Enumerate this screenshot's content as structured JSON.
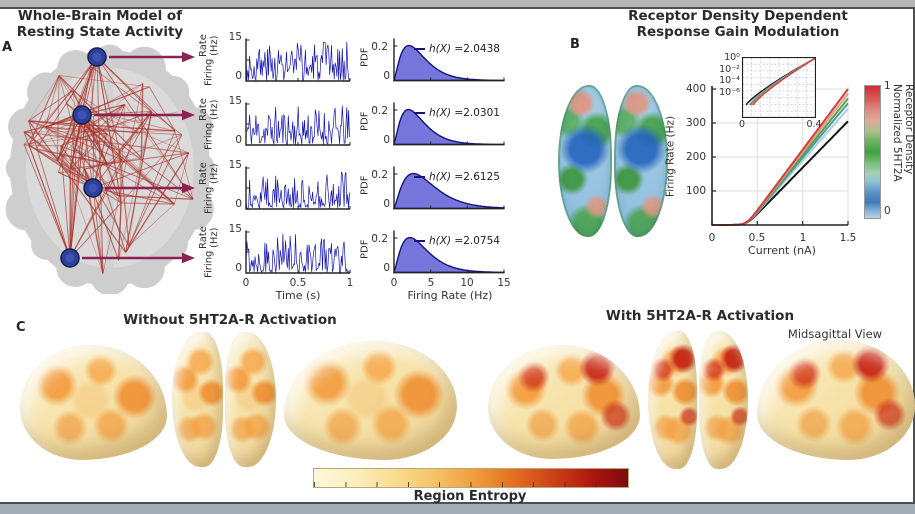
{
  "panelA": {
    "label": "A",
    "title_line1": "Whole-Brain Model of",
    "title_line2": "Resting State Activity",
    "ts_ylabel_line1": "Firing",
    "ts_ylabel_line2": "Rate (Hz)",
    "ts_ymax": "15",
    "ts_ymin": "0",
    "pdf_ylabel": "PDF",
    "pdf_ymax": "0.2",
    "pdf_ymin": "0",
    "h_prefix": "h(X) = ",
    "h_values": [
      "2.0438",
      "2.0301",
      "2.6125",
      "2.0754"
    ],
    "time_ticks": [
      "0",
      "0.5",
      "1"
    ],
    "time_label": "Time (s)",
    "rate_ticks": [
      "0",
      "5",
      "10",
      "15"
    ],
    "rate_label": "Firing Rate (Hz)"
  },
  "panelB": {
    "label": "B",
    "title_line1": "Receptor Density Dependent",
    "title_line2": "Response Gain Modulation",
    "ylabel": "Firing Rate (Hz)",
    "yticks": [
      "400",
      "300",
      "200",
      "100"
    ],
    "xticks": [
      "0",
      "0.5",
      "1",
      "1.5"
    ],
    "xlabel": "Current (nA)",
    "inset_yticks": [
      "10⁰",
      "10⁻²",
      "10⁻⁴",
      "10⁻⁶"
    ],
    "inset_xticks": [
      "0",
      "0.4"
    ],
    "cbar_max": "1",
    "cbar_min": "0",
    "cbar_label_line1": "Normalized 5HT2A",
    "cbar_label_line2": "Receptor Density"
  },
  "panelC": {
    "label": "C",
    "title_without": "Without 5HT2A-R Activation",
    "title_with": "With 5HT2A-R Activation",
    "view_label": "Midsagittal View",
    "cbar_label": "Region Entropy"
  },
  "render": {
    "ts": {
      "color": "#1414b4",
      "seeds": [
        3,
        11,
        27,
        55
      ]
    },
    "pdf": {
      "fill": "#7676dc",
      "stroke": "#13137c",
      "thetas": [
        1.5,
        1.45,
        1.95,
        1.6
      ]
    },
    "net": {
      "seed": 9,
      "edges": 120,
      "edge_color": "#a8322a",
      "node_color": "#2e4098",
      "arrow_color": "#8d2150",
      "hubs": [
        [
          97,
          15
        ],
        [
          82,
          73
        ],
        [
          93,
          146
        ],
        [
          70,
          216
        ]
      ]
    },
    "fi": {
      "threshold": 0.38,
      "series": [
        {
          "color": "#151515",
          "end": 305,
          "ishift": 0.0
        },
        {
          "color": "#a9cfe5",
          "end": 342,
          "ishift": 0.016
        },
        {
          "color": "#4f9b9b",
          "end": 358,
          "ishift": 0.021
        },
        {
          "color": "#49a649",
          "end": 372,
          "ishift": 0.026
        },
        {
          "color": "#e79a86",
          "end": 386,
          "ishift": 0.032
        },
        {
          "color": "#d43d3d",
          "end": 400,
          "ishift": 0.038
        }
      ]
    }
  },
  "chart_data": [
    {
      "id": "A_time_series",
      "type": "line",
      "xlabel": "Time (s)",
      "ylabel": "Firing Rate (Hz)",
      "xlim": [
        0,
        1
      ],
      "ylim": [
        0,
        15
      ],
      "xticks": [
        0,
        0.5,
        1
      ],
      "yticks": [
        0,
        15
      ],
      "n_series": 4,
      "description": "Four dense stochastic firing-rate traces, one per highlighted network node, fluctuating between 0 and 15 Hz"
    },
    {
      "id": "A_rate_pdfs",
      "type": "area",
      "xlabel": "Firing Rate (Hz)",
      "ylabel": "PDF",
      "xlim": [
        0,
        15
      ],
      "ylim": [
        0,
        0.2
      ],
      "xticks": [
        0,
        5,
        10,
        15
      ],
      "yticks": [
        0,
        0.2
      ],
      "series": [
        {
          "name": "node 1",
          "entropy_h": 2.0438
        },
        {
          "name": "node 2",
          "entropy_h": 2.0301
        },
        {
          "name": "node 3",
          "entropy_h": 2.6125
        },
        {
          "name": "node 4",
          "entropy_h": 2.0754
        }
      ],
      "shape": "right-skewed gamma-like densities peaking near 1-2 Hz at PDF ≈ 0.2"
    },
    {
      "id": "B_fI_curves",
      "type": "line",
      "xlabel": "Current (nA)",
      "ylabel": "Firing Rate (Hz)",
      "xlim": [
        0,
        1.5
      ],
      "ylim": [
        0,
        400
      ],
      "xticks": [
        0,
        0.5,
        1,
        1.5
      ],
      "yticks": [
        100,
        200,
        300,
        400
      ],
      "threshold_nA": 0.4,
      "series": [
        {
          "receptor_density": 0.0,
          "color": "black",
          "rate_at_1.5nA": 305
        },
        {
          "receptor_density": 0.2,
          "color": "light blue",
          "rate_at_1.5nA": 342
        },
        {
          "receptor_density": 0.4,
          "color": "teal",
          "rate_at_1.5nA": 358
        },
        {
          "receptor_density": 0.6,
          "color": "green",
          "rate_at_1.5nA": 372
        },
        {
          "receptor_density": 0.8,
          "color": "salmon",
          "rate_at_1.5nA": 386
        },
        {
          "receptor_density": 1.0,
          "color": "red",
          "rate_at_1.5nA": 400
        }
      ],
      "note": "response gain increases with normalized 5HT2A receptor density"
    },
    {
      "id": "B_fI_inset",
      "type": "line",
      "xlim": [
        0,
        0.4
      ],
      "xticks": [
        0,
        0.4
      ],
      "yscale": "log",
      "yticks": [
        "10^0",
        "10^-2",
        "10^-4",
        "10^-6"
      ],
      "grid": "dashed"
    },
    {
      "id": "B_colorbar",
      "type": "colorbar",
      "label": "Normalized 5HT2A Receptor Density",
      "range": [
        0,
        1
      ],
      "colors": "light blue → blue → green → pink → red"
    },
    {
      "id": "C_colorbar",
      "type": "colorbar",
      "label": "Region Entropy",
      "colors": "light yellow → orange → red → dark red",
      "observation": "entropy maps are redder (higher) with 5HT2A-R activation than without"
    }
  ]
}
